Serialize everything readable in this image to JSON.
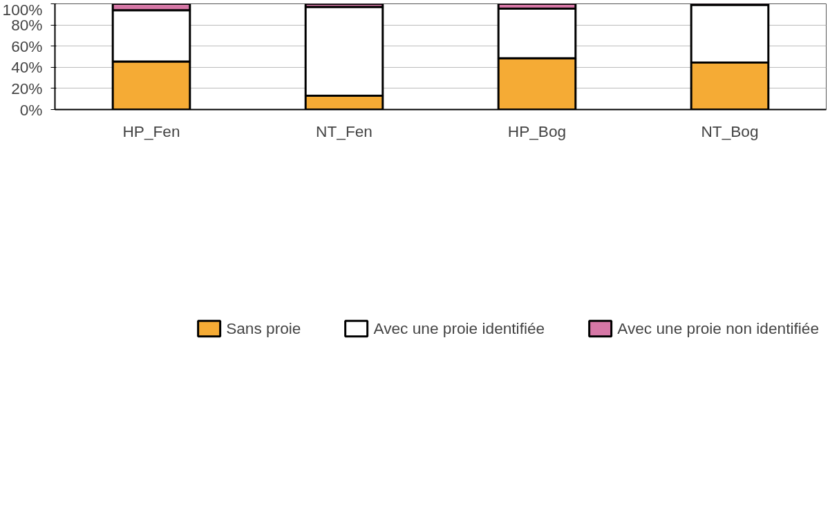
{
  "chart_data": {
    "type": "bar",
    "stacked": true,
    "categories": [
      "HP_Fen",
      "NT_Fen",
      "HP_Bog",
      "NT_Bog"
    ],
    "series": [
      {
        "name": "Sans proie",
        "color": "#f5ab35",
        "values": [
          45.5,
          13,
          48.5,
          44.5
        ]
      },
      {
        "name": "Avec une proie identifiée",
        "color": "#ffffff",
        "values": [
          48.5,
          84,
          47,
          54.5
        ]
      },
      {
        "name": "Avec une proie non identifiée",
        "color": "#d677a6",
        "values": [
          6,
          3,
          4.5,
          1
        ]
      }
    ],
    "ylim": [
      0,
      100
    ],
    "yticks": [
      {
        "value": 0,
        "label": "0%"
      },
      {
        "value": 20,
        "label": "20%"
      },
      {
        "value": 40,
        "label": "40%"
      },
      {
        "value": 60,
        "label": "60%"
      },
      {
        "value": 80,
        "label": "80%"
      },
      {
        "value": 100,
        "label": "100%"
      }
    ],
    "grid": "y",
    "legend": "bottom"
  }
}
